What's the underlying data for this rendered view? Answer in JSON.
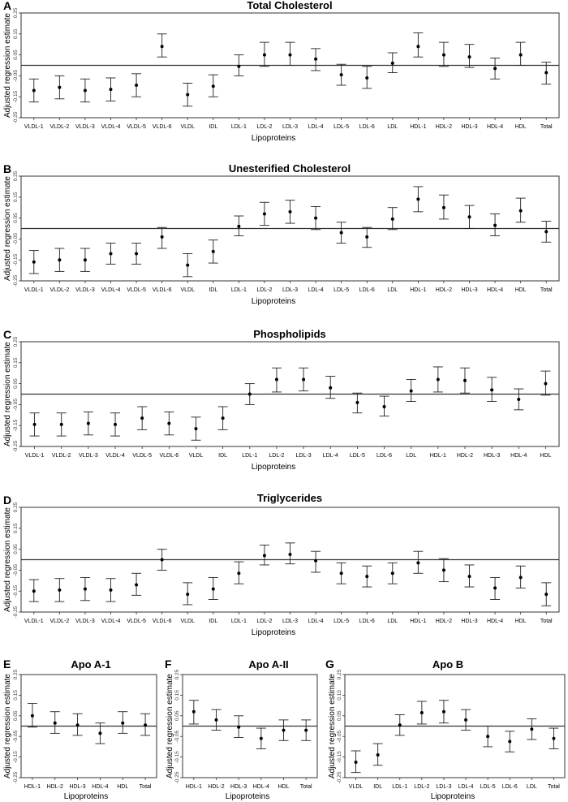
{
  "chart_data": [
    {
      "type": "errorbar",
      "panel": "A",
      "title": "Total Cholesterol",
      "xlabel": "Lipoproteins",
      "ylabel": "Adjusted regression estimate",
      "ylim": [
        -0.25,
        0.25
      ],
      "ytick_labels": [
        "0.25",
        "0.15",
        "0.05",
        "-0.05",
        "-0.15",
        "-0.25"
      ],
      "reference_line": 0,
      "categories": [
        "VLDL-1",
        "VLDL-2",
        "VLDL-3",
        "VLDL-4",
        "VLDL-5",
        "VLDL-6",
        "VLDL",
        "IDL",
        "LDL-1",
        "LDL-2",
        "LDL-3",
        "LDL-4",
        "LDL-5",
        "LDL-6",
        "LDL",
        "HDL-1",
        "HDL-2",
        "HDL-3",
        "HDL-4",
        "HDL",
        "Total"
      ],
      "estimate": [
        -0.12,
        -0.105,
        -0.12,
        -0.115,
        -0.095,
        0.09,
        -0.14,
        -0.1,
        -0.005,
        0.05,
        0.05,
        0.03,
        -0.045,
        -0.06,
        0.01,
        0.09,
        0.05,
        0.04,
        -0.015,
        0.05,
        -0.035
      ],
      "ci_low": [
        -0.175,
        -0.16,
        -0.175,
        -0.17,
        -0.15,
        0.04,
        -0.195,
        -0.15,
        -0.05,
        -0.005,
        0.0,
        -0.025,
        -0.095,
        -0.11,
        -0.035,
        0.04,
        -0.005,
        -0.01,
        -0.065,
        0.0,
        -0.09
      ],
      "ci_high": [
        -0.065,
        -0.05,
        -0.065,
        -0.06,
        -0.04,
        0.15,
        -0.085,
        -0.045,
        0.05,
        0.11,
        0.11,
        0.08,
        0.005,
        -0.005,
        0.06,
        0.155,
        0.11,
        0.1,
        0.035,
        0.11,
        0.015
      ]
    },
    {
      "type": "errorbar",
      "panel": "B",
      "title": "Unesterified Cholesterol",
      "xlabel": "Lipoproteins",
      "ylabel": "Adjusted regression estimate",
      "ylim": [
        -0.25,
        0.25
      ],
      "ytick_labels": [
        "0.25",
        "0.15",
        "0.05",
        "-0.05",
        "-0.15",
        "-0.25"
      ],
      "reference_line": 0,
      "categories": [
        "VLDL-1",
        "VLDL-2",
        "VLDL-3",
        "VLDL-4",
        "VLDL-5",
        "VLDL-6",
        "VLDL",
        "IDL",
        "LDL-1",
        "LDL-2",
        "LDL-3",
        "LDL-4",
        "LDL-5",
        "LDL-6",
        "LDL",
        "HDL-1",
        "HDL-2",
        "HDL-3",
        "HDL-4",
        "HDL",
        "Total"
      ],
      "estimate": [
        -0.16,
        -0.15,
        -0.15,
        -0.12,
        -0.12,
        -0.04,
        -0.175,
        -0.11,
        0.01,
        0.07,
        0.08,
        0.05,
        -0.02,
        -0.04,
        0.045,
        0.14,
        0.1,
        0.055,
        0.015,
        0.085,
        -0.015
      ],
      "ci_low": [
        -0.215,
        -0.205,
        -0.205,
        -0.17,
        -0.17,
        -0.095,
        -0.23,
        -0.165,
        -0.035,
        0.015,
        0.025,
        -0.005,
        -0.07,
        -0.09,
        -0.005,
        0.08,
        0.045,
        0.0,
        -0.035,
        0.03,
        -0.065
      ],
      "ci_high": [
        -0.105,
        -0.095,
        -0.095,
        -0.07,
        -0.07,
        0.005,
        -0.12,
        -0.055,
        0.06,
        0.125,
        0.135,
        0.105,
        0.03,
        0.005,
        0.1,
        0.2,
        0.16,
        0.11,
        0.07,
        0.145,
        0.035
      ]
    },
    {
      "type": "errorbar",
      "panel": "C",
      "title": "Phospholipids",
      "xlabel": "Lipoproteins",
      "ylabel": "Adjusted regression estimate",
      "ylim": [
        -0.25,
        0.25
      ],
      "ytick_labels": [
        "0.25",
        "0.15",
        "0.05",
        "-0.05",
        "-0.15",
        "-0.25"
      ],
      "reference_line": 0,
      "categories": [
        "VLDL-1",
        "VLDL-2",
        "VLDL-3",
        "VLDL-4",
        "VLDL-5",
        "VLDL-6",
        "VLDL",
        "IDL",
        "LDL-1",
        "LDL-2",
        "LDL-3",
        "LDL-4",
        "LDL-5",
        "LDL-6",
        "LDL",
        "HDL-1",
        "HDL-2",
        "HDL-3",
        "HDL-4",
        "HDL"
      ],
      "estimate": [
        -0.145,
        -0.145,
        -0.14,
        -0.145,
        -0.115,
        -0.14,
        -0.165,
        -0.115,
        0.0,
        0.07,
        0.07,
        0.03,
        -0.04,
        -0.06,
        0.015,
        0.07,
        0.065,
        0.02,
        -0.025,
        0.05
      ],
      "ci_low": [
        -0.2,
        -0.2,
        -0.195,
        -0.2,
        -0.17,
        -0.195,
        -0.22,
        -0.17,
        -0.05,
        0.01,
        0.015,
        -0.02,
        -0.09,
        -0.105,
        -0.035,
        0.01,
        0.005,
        -0.035,
        -0.075,
        -0.005
      ],
      "ci_high": [
        -0.09,
        -0.09,
        -0.085,
        -0.09,
        -0.06,
        -0.085,
        -0.11,
        -0.06,
        0.05,
        0.125,
        0.125,
        0.085,
        0.005,
        -0.01,
        0.07,
        0.13,
        0.125,
        0.08,
        0.025,
        0.11
      ]
    },
    {
      "type": "errorbar",
      "panel": "D",
      "title": "Triglycerides",
      "xlabel": "Lipoproteins",
      "ylabel": "Adjusted regression estimate",
      "ylim": [
        -0.25,
        0.25
      ],
      "ytick_labels": [
        "0.25",
        "0.15",
        "0.05",
        "-0.05",
        "-0.15",
        "-0.25"
      ],
      "reference_line": 0,
      "categories": [
        "VLDL-1",
        "VLDL-2",
        "VLDL-3",
        "VLDL-4",
        "VLDL-5",
        "VLDL-6",
        "VLDL",
        "IDL",
        "LDL-1",
        "LDL-2",
        "LDL-3",
        "LDL-4",
        "LDL-5",
        "LDL-6",
        "LDL",
        "HDL-1",
        "HDL-2",
        "HDL-3",
        "HDL-4",
        "HDL",
        "Total"
      ],
      "estimate": [
        -0.15,
        -0.145,
        -0.14,
        -0.145,
        -0.12,
        0.0,
        -0.165,
        -0.14,
        -0.065,
        0.02,
        0.025,
        -0.005,
        -0.065,
        -0.08,
        -0.065,
        -0.015,
        -0.05,
        -0.08,
        -0.135,
        -0.085,
        -0.165
      ],
      "ci_low": [
        -0.2,
        -0.2,
        -0.195,
        -0.2,
        -0.17,
        -0.05,
        -0.215,
        -0.19,
        -0.115,
        -0.025,
        -0.02,
        -0.06,
        -0.115,
        -0.13,
        -0.115,
        -0.065,
        -0.105,
        -0.13,
        -0.19,
        -0.135,
        -0.22
      ],
      "ci_high": [
        -0.095,
        -0.09,
        -0.085,
        -0.09,
        -0.065,
        0.05,
        -0.11,
        -0.085,
        -0.01,
        0.07,
        0.08,
        0.04,
        -0.015,
        -0.03,
        -0.015,
        0.04,
        0.005,
        -0.025,
        -0.085,
        -0.03,
        -0.11
      ]
    },
    {
      "type": "errorbar",
      "panel": "E",
      "title": "Apo A-1",
      "xlabel": "Lipoproteins",
      "ylabel": "Adjusted regression estimate",
      "ylim": [
        -0.25,
        0.25
      ],
      "ytick_labels": [
        "0.25",
        "0.15",
        "0.05",
        "-0.05",
        "-0.15",
        "-0.25"
      ],
      "reference_line": 0,
      "categories": [
        "HDL-1",
        "HDL-2",
        "HDL-3",
        "HDL-4",
        "HDL",
        "Total"
      ],
      "estimate": [
        0.05,
        0.015,
        0.005,
        -0.035,
        0.015,
        0.005
      ],
      "ci_low": [
        -0.005,
        -0.035,
        -0.045,
        -0.085,
        -0.035,
        -0.045
      ],
      "ci_high": [
        0.11,
        0.07,
        0.06,
        0.015,
        0.07,
        0.06
      ]
    },
    {
      "type": "errorbar",
      "panel": "F",
      "title": "Apo A-II",
      "xlabel": "Lipoproteins",
      "ylabel": "Adjusted regression estimate",
      "ylim": [
        -0.25,
        0.25
      ],
      "ytick_labels": [
        "0.25",
        "0.15",
        "0.05",
        "-0.05",
        "-0.15",
        "-0.25"
      ],
      "reference_line": 0,
      "categories": [
        "HDL-1",
        "HDL-2",
        "HDL-3",
        "HDL-4",
        "HDL",
        "Total"
      ],
      "estimate": [
        0.07,
        0.03,
        -0.005,
        -0.06,
        -0.02,
        -0.02
      ],
      "ci_low": [
        0.01,
        -0.02,
        -0.055,
        -0.11,
        -0.07,
        -0.07
      ],
      "ci_high": [
        0.125,
        0.08,
        0.05,
        -0.01,
        0.03,
        0.03
      ]
    },
    {
      "type": "errorbar",
      "panel": "G",
      "title": "Apo B",
      "xlabel": "Lipoproteins",
      "ylabel": "Adjusted regression estimate",
      "ylim": [
        -0.25,
        0.25
      ],
      "ytick_labels": [
        "0.25",
        "0.15",
        "0.05",
        "-0.05",
        "-0.15",
        "-0.25"
      ],
      "reference_line": 0,
      "categories": [
        "VLDL",
        "IDL",
        "LDL-1",
        "LDL-2",
        "LDL-3",
        "LDL-4",
        "LDL-5",
        "LDL-6",
        "LDL",
        "Total"
      ],
      "estimate": [
        -0.175,
        -0.14,
        0.005,
        0.065,
        0.07,
        0.03,
        -0.05,
        -0.075,
        -0.015,
        -0.06
      ],
      "ci_low": [
        -0.225,
        -0.19,
        -0.045,
        0.01,
        0.015,
        -0.02,
        -0.1,
        -0.125,
        -0.065,
        -0.11
      ],
      "ci_high": [
        -0.12,
        -0.085,
        0.055,
        0.12,
        0.125,
        0.08,
        0.0,
        -0.025,
        0.035,
        -0.01
      ]
    }
  ]
}
